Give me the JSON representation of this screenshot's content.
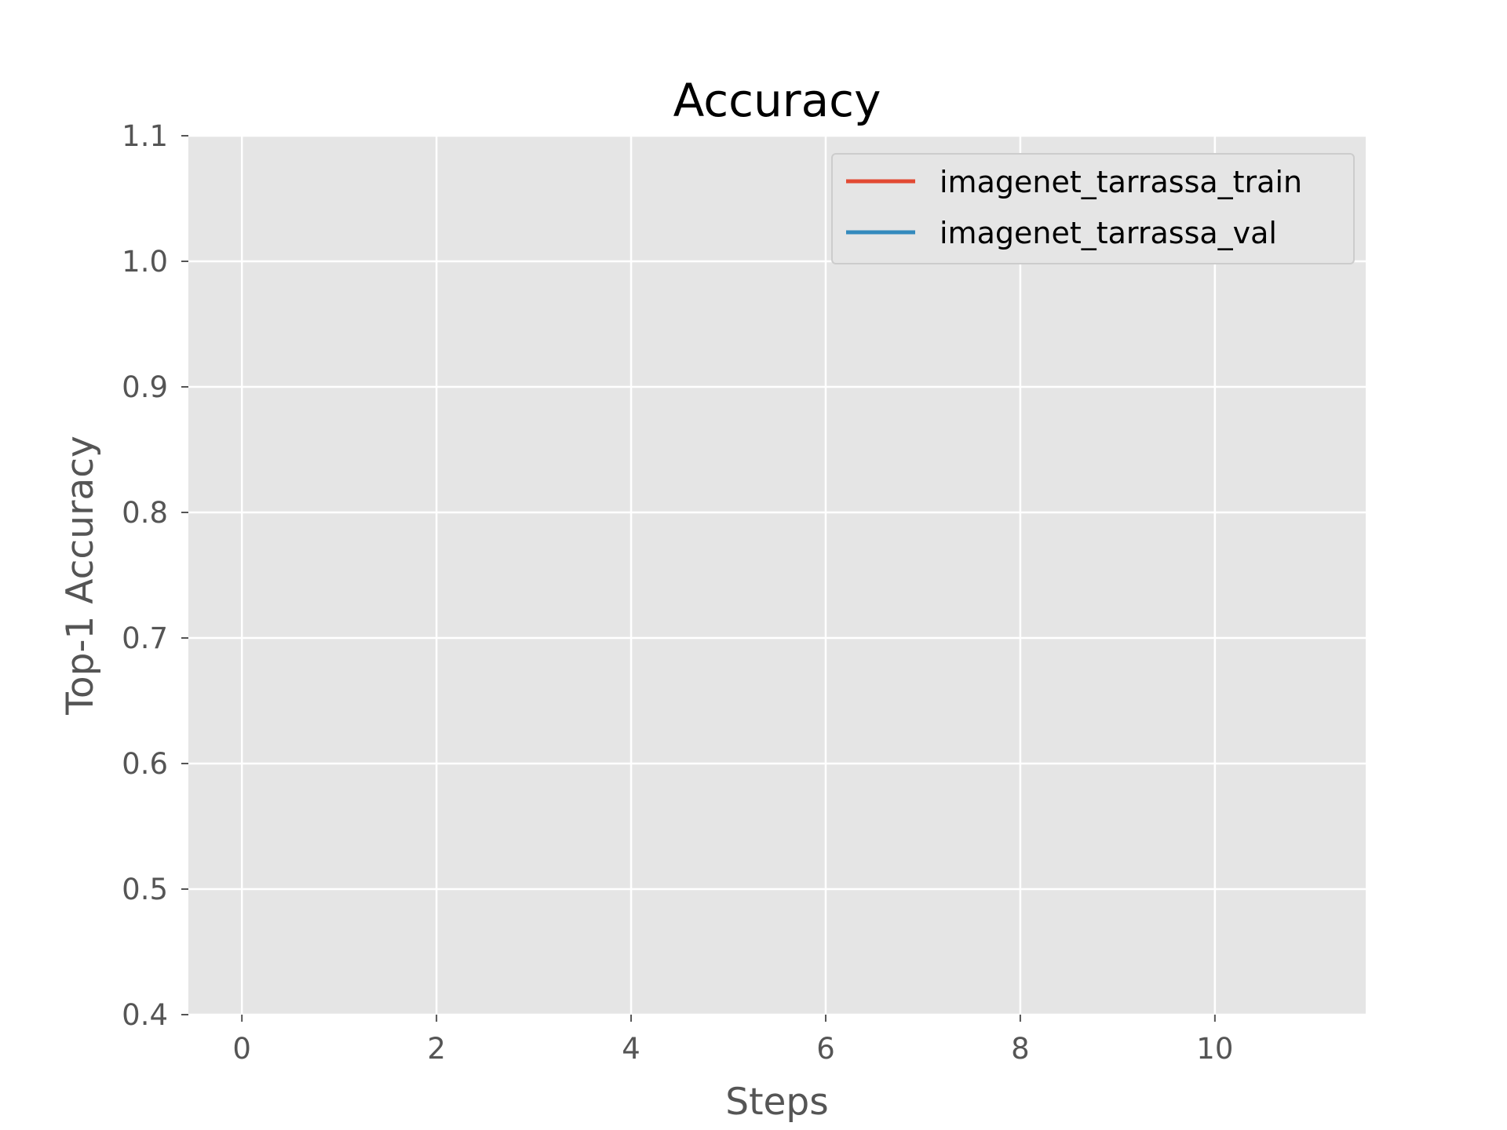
{
  "chart_data": {
    "type": "line",
    "title": "Accuracy",
    "xlabel": "Steps",
    "ylabel": "Top-1 Accuracy",
    "xlim": [
      -0.55,
      11.55
    ],
    "ylim": [
      0.4,
      1.1
    ],
    "xticks": [
      0,
      2,
      4,
      6,
      8,
      10
    ],
    "yticks": [
      0.4,
      0.5,
      0.6,
      0.7,
      0.8,
      0.9,
      1.0,
      1.1
    ],
    "xtick_labels": [
      "0",
      "2",
      "4",
      "6",
      "8",
      "10"
    ],
    "ytick_labels": [
      "0.4",
      "0.5",
      "0.6",
      "0.7",
      "0.8",
      "0.9",
      "1.0",
      "1.1"
    ],
    "grid": true,
    "legend_position": "top-right",
    "series": [
      {
        "name": "imagenet_tarrassa_train",
        "color": "#e24a33",
        "x": [],
        "y": []
      },
      {
        "name": "imagenet_tarrassa_val",
        "color": "#348abd",
        "x": [],
        "y": []
      }
    ]
  }
}
